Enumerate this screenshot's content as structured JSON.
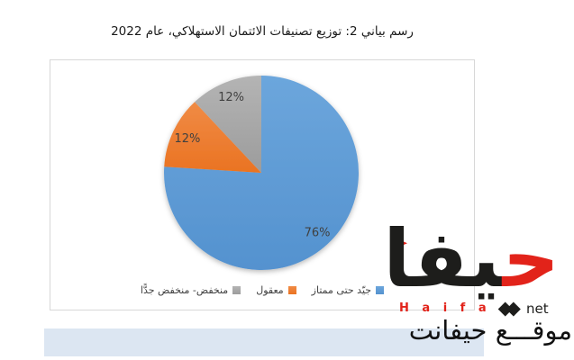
{
  "chart_data": {
    "type": "pie",
    "title": "رسم بياني 2: توزيع تصنيفات الائتمان الاستهلاكي، عام 2022",
    "series": [
      {
        "label": "جيّد حتى ممتاز",
        "value": 76,
        "data_label": "76%",
        "color": "#5B9BD5",
        "color_light": "#6CA6DC",
        "color_dark": "#5492CF"
      },
      {
        "label": "معقول",
        "value": 12,
        "data_label": "12%",
        "color": "#ED7D31",
        "color_light": "#F08B45",
        "color_dark": "#EA7322"
      },
      {
        "label": "منخفض- منخفض جدًّا",
        "value": 12,
        "data_label": "12%",
        "color": "#A5A5A5",
        "color_light": "#B4B4B4",
        "color_dark": "#9C9C9C"
      }
    ],
    "start_angle_deg": 0,
    "direction": "clockwise",
    "legend_position": "bottom",
    "data_label_color": "#404040",
    "grid": false
  },
  "footer_bar": {
    "color": "#dce6f2"
  },
  "logo": {
    "wordmark_first_letter": "ح",
    "wordmark_rest": "يفا",
    "latin_name": "H a i f a",
    "diamonds": "◆◆",
    "net_label": "net",
    "tagline": "موقـــع حيفانت",
    "red": "#e2231a",
    "black": "#1d1d1b"
  }
}
